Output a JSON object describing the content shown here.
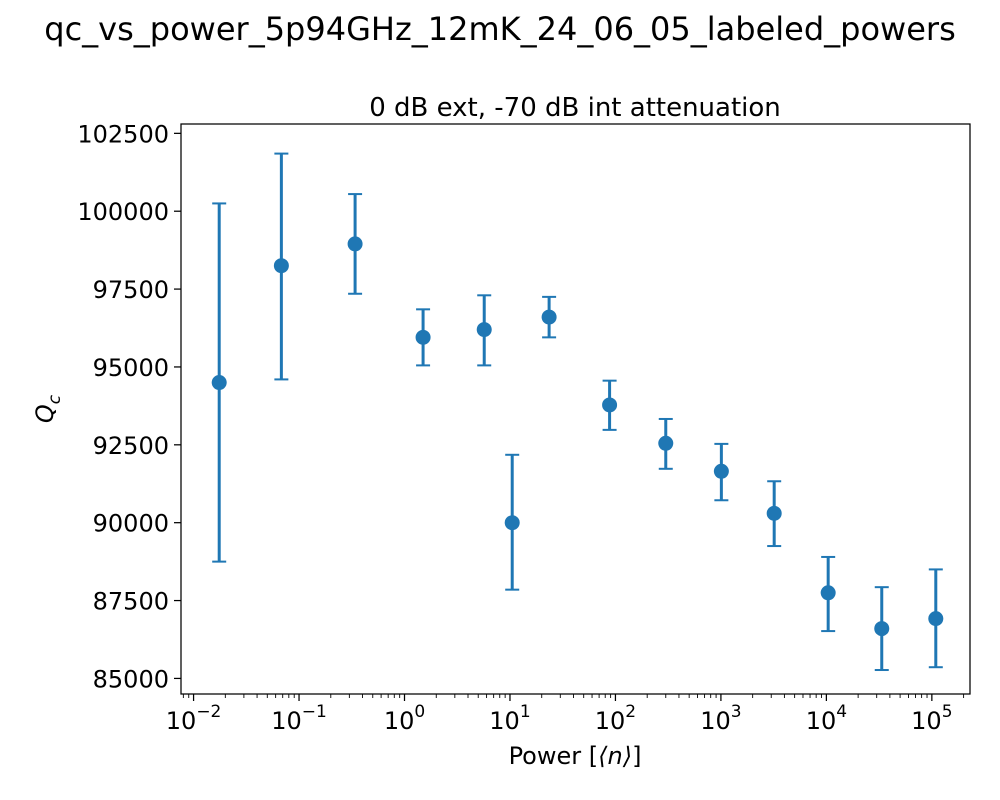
{
  "figure": {
    "suptitle": "qc_vs_power_5p94GHz_12mK_24_06_05_labeled_powers"
  },
  "chart_data": {
    "type": "scatter",
    "title": "0 dB ext, -70 dB int attenuation",
    "xlabel_prefix": "Power [",
    "xlabel_symbol": "⟨n⟩",
    "xlabel_suffix": "]",
    "ylabel_main": "Q",
    "ylabel_sub": "c",
    "xscale": "log",
    "xlim": [
      0.0076,
      230000
    ],
    "ylim": [
      84500,
      102800
    ],
    "grid": false,
    "color": "#1f77b4",
    "x_ticks": [
      {
        "base": "10",
        "exp": "−2",
        "value": 0.01
      },
      {
        "base": "10",
        "exp": "−1",
        "value": 0.1
      },
      {
        "base": "10",
        "exp": "0",
        "value": 1
      },
      {
        "base": "10",
        "exp": "1",
        "value": 10
      },
      {
        "base": "10",
        "exp": "2",
        "value": 100
      },
      {
        "base": "10",
        "exp": "3",
        "value": 1000
      },
      {
        "base": "10",
        "exp": "4",
        "value": 10000
      },
      {
        "base": "10",
        "exp": "5",
        "value": 100000
      }
    ],
    "y_ticks": [
      {
        "label": "85000",
        "value": 85000
      },
      {
        "label": "87500",
        "value": 87500
      },
      {
        "label": "90000",
        "value": 90000
      },
      {
        "label": "92500",
        "value": 92500
      },
      {
        "label": "95000",
        "value": 95000
      },
      {
        "label": "97500",
        "value": 97500
      },
      {
        "label": "100000",
        "value": 100000
      },
      {
        "label": "102500",
        "value": 102500
      }
    ],
    "points": [
      {
        "x": 0.0175,
        "y": 94500,
        "yerr_low": 88750,
        "yerr_high": 100250
      },
      {
        "x": 0.068,
        "y": 98250,
        "yerr_low": 94600,
        "yerr_high": 101850
      },
      {
        "x": 0.34,
        "y": 98950,
        "yerr_low": 97350,
        "yerr_high": 100550
      },
      {
        "x": 1.5,
        "y": 95950,
        "yerr_low": 95050,
        "yerr_high": 96850
      },
      {
        "x": 5.7,
        "y": 96200,
        "yerr_low": 95050,
        "yerr_high": 97300
      },
      {
        "x": 10.5,
        "y": 90000,
        "yerr_low": 87850,
        "yerr_high": 92180
      },
      {
        "x": 23.5,
        "y": 96600,
        "yerr_low": 95950,
        "yerr_high": 97250
      },
      {
        "x": 88,
        "y": 93780,
        "yerr_low": 92980,
        "yerr_high": 94560
      },
      {
        "x": 300,
        "y": 92550,
        "yerr_low": 91730,
        "yerr_high": 93330
      },
      {
        "x": 1010,
        "y": 91650,
        "yerr_low": 90720,
        "yerr_high": 92530
      },
      {
        "x": 3200,
        "y": 90300,
        "yerr_low": 89250,
        "yerr_high": 91330
      },
      {
        "x": 10400,
        "y": 87750,
        "yerr_low": 86520,
        "yerr_high": 88900
      },
      {
        "x": 33500,
        "y": 86600,
        "yerr_low": 85270,
        "yerr_high": 87930
      },
      {
        "x": 109000,
        "y": 86920,
        "yerr_low": 85360,
        "yerr_high": 88500
      }
    ]
  }
}
